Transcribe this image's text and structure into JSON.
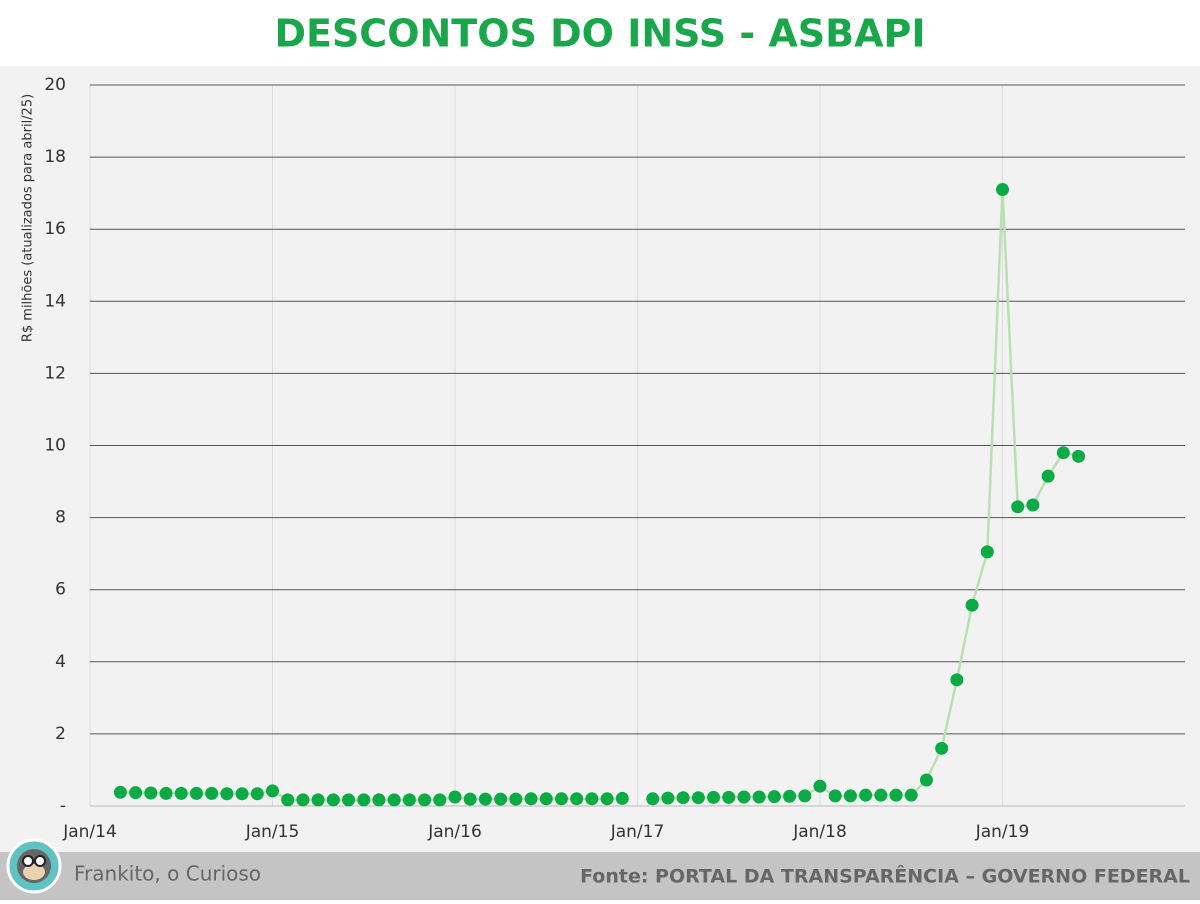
{
  "chart_data": {
    "type": "line",
    "title": "DESCONTOS DO INSS - ASBAPI",
    "y_label": "R$ milhões (atualizados para abril/25)",
    "footer_left": "Frankito, o Curioso",
    "footer_right": "Fonte: PORTAL DA TRANSPARÊNCIA – GOVERNO FEDERAL",
    "x": [
      "2014-03",
      "2014-04",
      "2014-05",
      "2014-06",
      "2014-07",
      "2014-08",
      "2014-09",
      "2014-10",
      "2014-11",
      "2014-12",
      "2015-01",
      "2015-02",
      "2015-03",
      "2015-04",
      "2015-05",
      "2015-06",
      "2015-07",
      "2015-08",
      "2015-09",
      "2015-10",
      "2015-11",
      "2015-12",
      "2016-01",
      "2016-02",
      "2016-03",
      "2016-04",
      "2016-05",
      "2016-06",
      "2016-07",
      "2016-08",
      "2016-09",
      "2016-10",
      "2016-11",
      "2016-12",
      "2017-01",
      "2017-02",
      "2017-03",
      "2017-04",
      "2017-05",
      "2017-06",
      "2017-07",
      "2017-08",
      "2017-09",
      "2017-10",
      "2017-11",
      "2017-12",
      "2018-01",
      "2018-02",
      "2018-03",
      "2018-04",
      "2018-05",
      "2018-06",
      "2018-07",
      "2018-08",
      "2018-09",
      "2018-10",
      "2018-11",
      "2018-12",
      "2019-01",
      "2019-02",
      "2019-03",
      "2019-04",
      "2019-05",
      "2019-06"
    ],
    "series": [
      {
        "name": "ASBAPI",
        "color": "#0aaa45",
        "line_color": "#b9e0b2",
        "values": [
          0.38,
          0.37,
          0.36,
          0.35,
          0.35,
          0.35,
          0.35,
          0.34,
          0.34,
          0.34,
          0.42,
          0.17,
          0.17,
          0.17,
          0.17,
          0.17,
          0.17,
          0.17,
          0.17,
          0.17,
          0.17,
          0.17,
          0.25,
          0.19,
          0.19,
          0.19,
          0.19,
          0.2,
          0.2,
          0.2,
          0.2,
          0.2,
          0.2,
          0.21,
          null,
          0.2,
          0.22,
          0.23,
          0.23,
          0.24,
          0.24,
          0.25,
          0.25,
          0.26,
          0.27,
          0.28,
          0.55,
          0.28,
          0.28,
          0.3,
          0.3,
          0.3,
          0.3,
          0.72,
          1.6,
          3.5,
          5.57,
          7.05,
          17.1,
          8.3,
          8.35,
          9.15,
          9.8,
          9.7
        ]
      }
    ],
    "xlim": [
      "2014-01",
      "2020-01"
    ],
    "xticks": [
      {
        "value": "2014-01",
        "label": "Jan/14"
      },
      {
        "value": "2015-01",
        "label": "Jan/15"
      },
      {
        "value": "2016-01",
        "label": "Jan/16"
      },
      {
        "value": "2017-01",
        "label": "Jan/17"
      },
      {
        "value": "2018-01",
        "label": "Jan/18"
      },
      {
        "value": "2019-01",
        "label": "Jan/19"
      }
    ],
    "ylim": [
      0,
      20
    ],
    "yticks": [
      {
        "value": 0,
        "label": "-"
      },
      2,
      4,
      6,
      8,
      10,
      12,
      14,
      16,
      18,
      20
    ],
    "grid": true
  }
}
